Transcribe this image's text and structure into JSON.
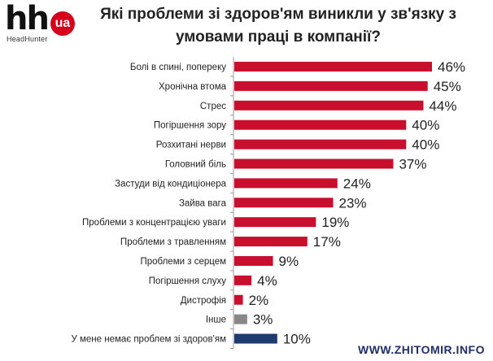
{
  "logo": {
    "mark": "hh",
    "badge": "ua",
    "brand": "HeadHunter"
  },
  "chart_data": {
    "type": "bar",
    "orientation": "horizontal",
    "title": "Які проблеми зі здоров'ям виникли у зв'язку з умовами праці в компанії?",
    "categories": [
      "Болі в спині, попереку",
      "Хронічна втома",
      "Стрес",
      "Погіршення зору",
      "Розхитані нерви",
      "Головний біль",
      "Застуди від кондиціонера",
      "Зайва вага",
      "Проблеми з концентрацією уваги",
      "Проблеми з травленням",
      "Проблеми з серцем",
      "Погіршення слуху",
      "Дистрофія",
      "Інше",
      "У мене немає проблем зі здоров'ям"
    ],
    "values": [
      46,
      45,
      44,
      40,
      40,
      37,
      24,
      23,
      19,
      17,
      9,
      4,
      2,
      3,
      10
    ],
    "value_labels": [
      "46%",
      "45%",
      "44%",
      "40%",
      "40%",
      "37%",
      "24%",
      "23%",
      "19%",
      "17%",
      "9%",
      "4%",
      "2%",
      "3%",
      "10%"
    ],
    "bar_colors": [
      "#c8102e",
      "#c8102e",
      "#c8102e",
      "#c8102e",
      "#c8102e",
      "#c8102e",
      "#c8102e",
      "#c8102e",
      "#c8102e",
      "#c8102e",
      "#c8102e",
      "#c8102e",
      "#c8102e",
      "#888888",
      "#1f3a6e"
    ],
    "xlim": [
      0,
      46
    ],
    "grid": false,
    "legend": "none"
  },
  "watermark": "WWW.ZHITOMIR.INFO"
}
